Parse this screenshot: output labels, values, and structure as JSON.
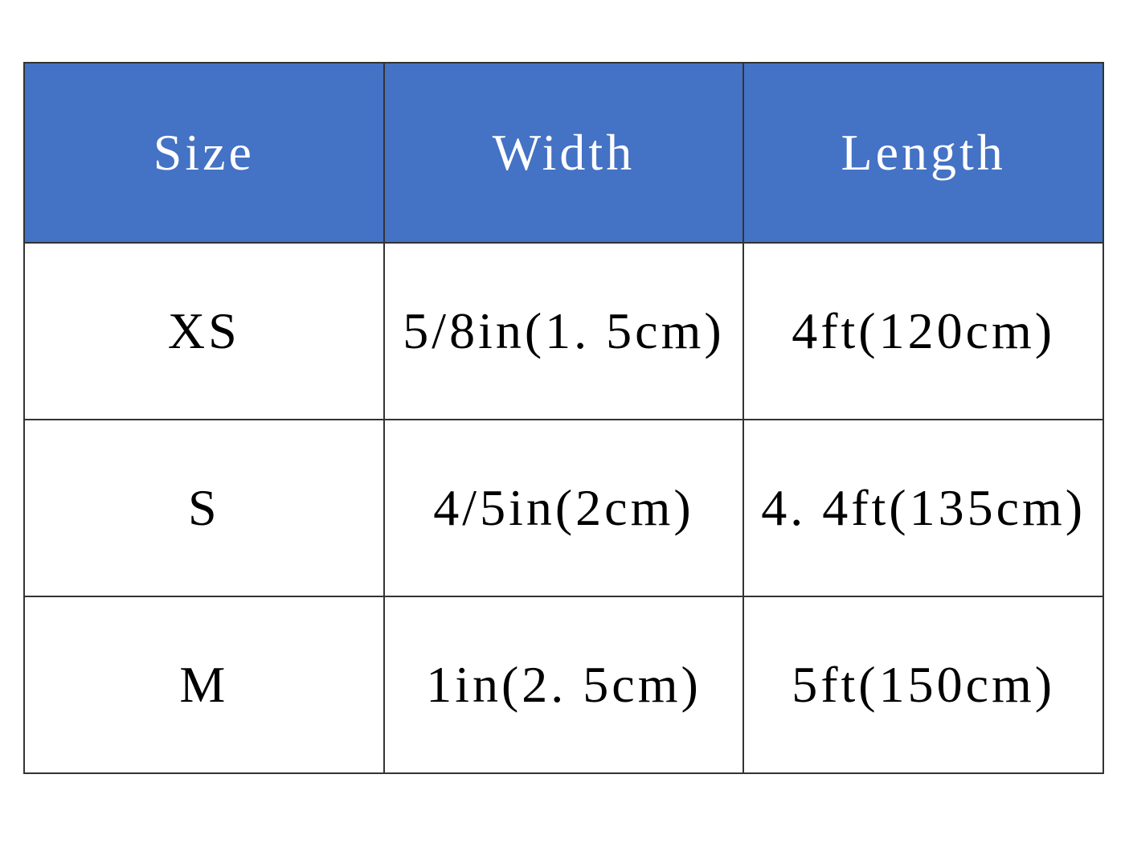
{
  "chart_data": {
    "type": "table",
    "title": "",
    "columns": [
      "Size",
      "Width",
      "Length"
    ],
    "rows": [
      [
        "XS",
        "5/8in(1. 5cm)",
        "4ft(120cm)"
      ],
      [
        "S",
        "4/5in(2cm)",
        "4. 4ft(135cm)"
      ],
      [
        "M",
        "1in(2. 5cm)",
        "5ft(150cm)"
      ]
    ]
  },
  "colors": {
    "header_bg": "#4472C4",
    "header_text": "#FFFFFF",
    "body_bg": "#FFFFFF",
    "body_text": "#000000",
    "border": "#333333",
    "page_bg": "#FFFFFF"
  }
}
